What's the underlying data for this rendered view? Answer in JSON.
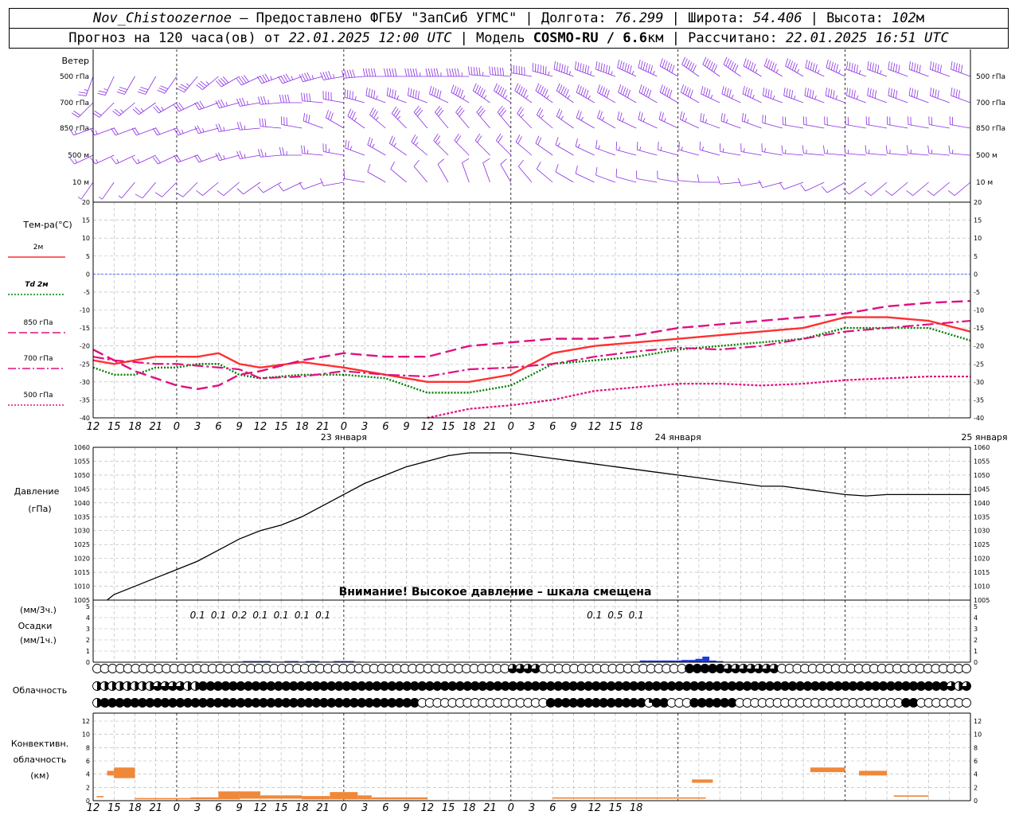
{
  "header": {
    "station": "Nov_Chistoozernoe",
    "provider": " – Предоставлено ФГБУ \"ЗапСиб УГМС\" | Долгота: ",
    "lon": "76.299",
    "lat_label": " | Широта: ",
    "lat": "54.406",
    "alt_label": " | Высота: ",
    "alt": "102",
    "alt_unit": "м",
    "fc_label": "Прогноз на 120 часа(ов) от ",
    "fc_time": "22.01.2025 12:00 UTC",
    "model_label": " | Модель ",
    "model": "COSMO-RU / 6.6",
    "model_unit": "км",
    "calc_label": " | Рассчитано: ",
    "calc_time": "22.01.2025 16:51 UTC"
  },
  "wind": {
    "title": "Ветер",
    "levels": [
      "500 гПа",
      "700 гПа",
      "850 гПа",
      "500 м",
      "10  м"
    ],
    "color": "#8a2be2"
  },
  "temp": {
    "title": "Тем-ра(°C)",
    "legend": [
      {
        "label": "2м",
        "color": "#ff3030",
        "dash": "solid"
      },
      {
        "label": "Td  2м",
        "color": "#008000",
        "dash": "dot"
      },
      {
        "label": "850 гПа",
        "color": "#e0107e",
        "dash": "longdash"
      },
      {
        "label": "700 гПа",
        "color": "#e0107e",
        "dash": "dashdot"
      },
      {
        "label": "500 гПа",
        "color": "#e0107e",
        "dash": "dot"
      }
    ]
  },
  "pressure": {
    "title1": "Давление",
    "title2": "(гПа)",
    "warning": "Внимание! Высокое давление – шкала смещена"
  },
  "precip": {
    "title1": "(мм/3ч.)",
    "title2": "Осадки",
    "title3": "(мм/1ч.)",
    "labels": [
      {
        "h": 15,
        "text": "0.1"
      },
      {
        "h": 18,
        "text": "0.1"
      },
      {
        "h": 21,
        "text": "0.2"
      },
      {
        "h": 24,
        "text": "0.1"
      },
      {
        "h": 27,
        "text": "0.1"
      },
      {
        "h": 30,
        "text": "0.1"
      },
      {
        "h": 33,
        "text": "0.1"
      },
      {
        "h": 72,
        "text": "0.1"
      },
      {
        "h": 75,
        "text": "0.5"
      },
      {
        "h": 78,
        "text": "0.1"
      }
    ]
  },
  "clouds": {
    "title": "Облачность",
    "rows": [
      "000000000000000000000000000000000000000000000000000000333300000000000000000004444433333330000000000000000000000000",
      "22222222333322444444444444444444444444444444444444444444444444444444444444444444444444444444444444444444444444444323",
      "24444444444444444444444444444444444444444440000000000000000044444444444441440004444440000000000000000000000440000000"
    ]
  },
  "convective": {
    "title1": "Конвективн.",
    "title2": "облачность",
    "title3": "(км)",
    "color": "#f0883a"
  },
  "axes": {
    "hour_ticks": [
      "12",
      "15",
      "18",
      "21",
      "0",
      "3",
      "6",
      "9",
      "12",
      "15",
      "18",
      "21",
      "0",
      "3",
      "6",
      "9",
      "12",
      "15",
      "18",
      "21",
      "0",
      "3",
      "6",
      "9",
      "12",
      "15",
      "18"
    ],
    "dates": [
      {
        "h": 36,
        "text": "23 января"
      },
      {
        "h": 84,
        "text": "24 января"
      },
      {
        "h": 128,
        "text": "25 января"
      }
    ],
    "temp_ticks": [
      20,
      15,
      10,
      5,
      0,
      -5,
      -10,
      -15,
      -20,
      -25,
      -30,
      -35,
      -40
    ],
    "pressure_ticks": [
      1060,
      1055,
      1050,
      1045,
      1040,
      1035,
      1030,
      1025,
      1020,
      1015,
      1010,
      1005
    ],
    "precip_ticks": [
      5,
      4,
      3,
      2,
      1,
      0
    ],
    "conv_ticks": [
      12,
      10,
      8,
      6,
      4,
      2,
      0
    ]
  },
  "chart_data": [
    {
      "type": "line",
      "title": "Тем-ра(°C)",
      "x_unit": "hours from 22.01.2025 12:00 UTC",
      "ylim": [
        -40,
        20
      ],
      "series": [
        {
          "name": "2м",
          "x": [
            0,
            3,
            6,
            9,
            12,
            15,
            18,
            21,
            24,
            30,
            36,
            42,
            48,
            54,
            60,
            66,
            72,
            78,
            84,
            90,
            96,
            102,
            108,
            114,
            120,
            126
          ],
          "values": [
            -24,
            -25,
            -24,
            -23,
            -23,
            -23,
            -22,
            -25,
            -26,
            -24.5,
            -26,
            -28,
            -30,
            -30,
            -28,
            -22,
            -20,
            -19,
            -18,
            -17,
            -16,
            -15,
            -12,
            -12,
            -13,
            -16
          ]
        },
        {
          "name": "Td  2м",
          "x": [
            0,
            3,
            6,
            9,
            12,
            15,
            18,
            21,
            24,
            30,
            36,
            42,
            48,
            54,
            60,
            66,
            72,
            78,
            84,
            90,
            96,
            102,
            108,
            114,
            120,
            126
          ],
          "values": [
            -26,
            -28,
            -28,
            -26,
            -26,
            -25,
            -25,
            -28,
            -29,
            -28,
            -28,
            -29,
            -33,
            -33,
            -31,
            -25,
            -24,
            -23,
            -21,
            -20,
            -19,
            -18,
            -15,
            -15,
            -15,
            -18.5
          ]
        },
        {
          "name": "850 гПа",
          "x": [
            0,
            3,
            6,
            9,
            12,
            15,
            18,
            21,
            24,
            30,
            36,
            42,
            48,
            54,
            60,
            66,
            72,
            78,
            84,
            90,
            96,
            102,
            108,
            114,
            120,
            126
          ],
          "values": [
            -21,
            -24,
            -27,
            -29,
            -31,
            -32,
            -31,
            -28,
            -27,
            -24,
            -22,
            -23,
            -23,
            -20,
            -19,
            -18,
            -18,
            -17,
            -15,
            -14,
            -13,
            -12,
            -11,
            -9,
            -8,
            -7.5
          ]
        },
        {
          "name": "700 гПа",
          "x": [
            0,
            3,
            6,
            9,
            12,
            15,
            18,
            21,
            24,
            30,
            36,
            42,
            48,
            54,
            60,
            66,
            72,
            78,
            84,
            90,
            96,
            102,
            108,
            114,
            120,
            126
          ],
          "values": [
            -23,
            -24,
            -24.5,
            -25,
            -25,
            -25.5,
            -26,
            -26.5,
            -29,
            -28.5,
            -27,
            -28,
            -28.5,
            -26.5,
            -26,
            -25,
            -23,
            -21.5,
            -20.5,
            -21,
            -20,
            -18,
            -16,
            -15,
            -14,
            -13
          ]
        },
        {
          "name": "500 гПа",
          "x": [
            48,
            54,
            60,
            66,
            72,
            78,
            84,
            90,
            96,
            102,
            108,
            114,
            120,
            126
          ],
          "values": [
            -40,
            -37.5,
            -36.5,
            -35,
            -32.5,
            -31.5,
            -30.5,
            -30.5,
            -31,
            -30.5,
            -29.5,
            -29,
            -28.5,
            -28.5
          ]
        }
      ]
    },
    {
      "type": "line",
      "title": "Давление",
      "ylabel": "(гПа)",
      "ylim": [
        1005,
        1060
      ],
      "x": [
        2,
        3,
        6,
        9,
        12,
        15,
        18,
        21,
        24,
        27,
        30,
        33,
        36,
        39,
        42,
        45,
        48,
        51,
        54,
        57,
        60,
        63,
        66,
        69,
        72,
        75,
        78,
        81,
        84,
        87,
        90,
        93,
        96,
        99,
        102,
        105,
        108,
        111,
        114,
        117,
        120,
        123,
        126
      ],
      "values": [
        1005,
        1007,
        1010,
        1013,
        1016,
        1019,
        1023,
        1027,
        1030,
        1032,
        1035,
        1039,
        1043,
        1047,
        1050,
        1053,
        1055,
        1057,
        1058,
        1058,
        1058,
        1057,
        1056,
        1055,
        1054,
        1053,
        1052,
        1051,
        1050,
        1049,
        1048,
        1047,
        1046,
        1046,
        1045,
        1044,
        1043,
        1042.5,
        1043,
        1043,
        1043,
        1043,
        1043
      ]
    },
    {
      "type": "bar",
      "title": "Осадки",
      "ylabel": "(мм/1ч.)",
      "ylim": [
        0,
        5
      ],
      "x": [
        15,
        18,
        21,
        22,
        23,
        24,
        25,
        26,
        27,
        28,
        29,
        30,
        31,
        32,
        33,
        34,
        35,
        36,
        37,
        38,
        62,
        78,
        79,
        80,
        81,
        82,
        83,
        84,
        85,
        86,
        87,
        88,
        89,
        90
      ],
      "values": [
        0.05,
        0.05,
        0.05,
        0.1,
        0.1,
        0.1,
        0.1,
        0.05,
        0.05,
        0.1,
        0.1,
        0.05,
        0.1,
        0.1,
        0.05,
        0.05,
        0.1,
        0.1,
        0.1,
        0.05,
        0.05,
        0.05,
        0.15,
        0.15,
        0.15,
        0.15,
        0.15,
        0.15,
        0.2,
        0.2,
        0.3,
        0.5,
        0.15,
        0.1
      ]
    },
    {
      "type": "bar",
      "title": "Конвективн. облачность",
      "ylabel": "(км)",
      "ylim": [
        0,
        13
      ],
      "segments": [
        {
          "h0": 0.5,
          "h1": 1.5,
          "base": 0.5,
          "top": 0.7
        },
        {
          "h0": 2,
          "h1": 3,
          "base": 3.8,
          "top": 4.5
        },
        {
          "h0": 3,
          "h1": 6,
          "base": 3.4,
          "top": 5.0
        },
        {
          "h0": 6,
          "h1": 14,
          "base": 0.2,
          "top": 0.4
        },
        {
          "h0": 14,
          "h1": 18,
          "base": 0.2,
          "top": 0.5
        },
        {
          "h0": 18,
          "h1": 21,
          "base": 0.2,
          "top": 1.4
        },
        {
          "h0": 21,
          "h1": 24,
          "base": 0.3,
          "top": 1.4
        },
        {
          "h0": 24,
          "h1": 27,
          "base": 0.3,
          "top": 0.8
        },
        {
          "h0": 27,
          "h1": 30,
          "base": 0.3,
          "top": 0.8
        },
        {
          "h0": 30,
          "h1": 34,
          "base": 0.2,
          "top": 0.7
        },
        {
          "h0": 34,
          "h1": 38,
          "base": 0.2,
          "top": 1.3
        },
        {
          "h0": 38,
          "h1": 40,
          "base": 0.2,
          "top": 0.8
        },
        {
          "h0": 40,
          "h1": 48,
          "base": 0.2,
          "top": 0.5
        },
        {
          "h0": 66,
          "h1": 88,
          "base": 0.3,
          "top": 0.5
        },
        {
          "h0": 86,
          "h1": 89,
          "base": 2.7,
          "top": 3.2
        },
        {
          "h0": 103,
          "h1": 108,
          "base": 4.3,
          "top": 5.0
        },
        {
          "h0": 110,
          "h1": 114,
          "base": 3.8,
          "top": 4.5
        },
        {
          "h0": 115,
          "h1": 120,
          "base": 0.6,
          "top": 0.8
        }
      ]
    }
  ]
}
